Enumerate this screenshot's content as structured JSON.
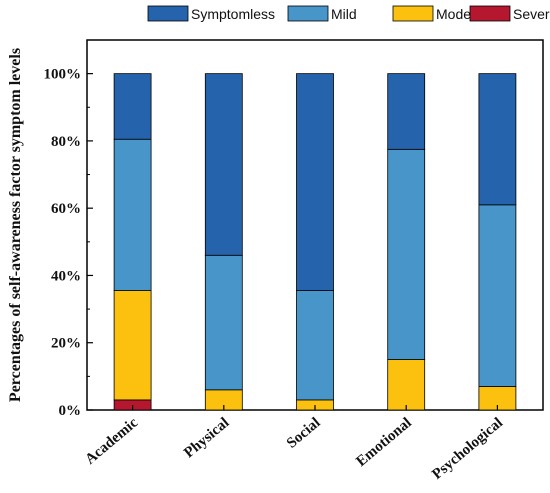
{
  "chart_data": {
    "type": "bar",
    "stacked": true,
    "categories": [
      "Academic",
      "Physical",
      "Social",
      "Emotional",
      "Psychological"
    ],
    "series": [
      {
        "name": "Severe",
        "color": "#b5182e",
        "values": [
          3,
          0,
          0,
          0,
          0
        ]
      },
      {
        "name": "Moderate",
        "color": "#fbc10e",
        "values": [
          32.5,
          6,
          3,
          15,
          7
        ]
      },
      {
        "name": "Mild",
        "color": "#4795c9",
        "values": [
          45,
          40,
          32.5,
          62.5,
          54
        ]
      },
      {
        "name": "Symptomless",
        "color": "#2563ac",
        "values": [
          19.5,
          54,
          64.5,
          22.5,
          39
        ]
      }
    ],
    "legend_order": [
      "Symptomless",
      "Mild",
      "Moderate",
      "Severe"
    ],
    "legend_position": "top",
    "ylabel": "Percentages of self-awareness factor symptom levels",
    "xlabel": "",
    "ylim": [
      0,
      110
    ],
    "yticks": [
      0,
      20,
      40,
      60,
      80,
      100
    ],
    "ytick_labels": [
      "0%",
      "20%",
      "40%",
      "60%",
      "80%",
      "100%"
    ],
    "grid": false
  }
}
